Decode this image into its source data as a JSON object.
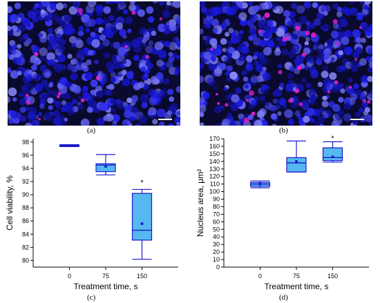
{
  "figure": {
    "panel_labels": {
      "a": "(a)",
      "b": "(b)",
      "c": "(c)",
      "d": "(d)"
    }
  },
  "micrographs": {
    "background_color": "#0a0a2e",
    "nucleus_color": "#2a2ae0",
    "marker_color": "#e020d0",
    "scale_bar_color": "#ffffff"
  },
  "chart_data": [
    {
      "type": "box",
      "panel": "c",
      "xlabel": "Treatment time, s",
      "ylabel": "Cell viability, %",
      "categories": [
        "0",
        "75",
        "150"
      ],
      "ylim": [
        79,
        98.5
      ],
      "yticks": [
        80,
        82,
        84,
        86,
        88,
        90,
        92,
        94,
        96,
        98
      ],
      "box_fill": "#55b8f0",
      "box_stroke": "#1a1acc",
      "series": [
        {
          "category": "0",
          "min": 97.3,
          "q1": 97.35,
          "median": 97.45,
          "q3": 97.55,
          "max": 97.6,
          "mean": 97.45
        },
        {
          "category": "75",
          "min": 93.0,
          "q1": 93.5,
          "median": 94.5,
          "q3": 94.7,
          "max": 96.1,
          "mean": 94.3
        },
        {
          "category": "150",
          "min": 80.2,
          "q1": 83.1,
          "median": 84.6,
          "q3": 90.2,
          "max": 90.8,
          "mean": 85.6
        }
      ],
      "annotations": [
        {
          "category": "150",
          "text": "*",
          "y": 91.9
        }
      ]
    },
    {
      "type": "box",
      "panel": "d",
      "xlabel": "Treatment time, s",
      "ylabel": "Nucleus area, μm²",
      "categories": [
        "0",
        "75",
        "150"
      ],
      "ylim": [
        0,
        170
      ],
      "yticks": [
        0,
        10,
        20,
        30,
        40,
        50,
        60,
        70,
        80,
        90,
        100,
        110,
        120,
        130,
        140,
        150,
        160,
        170
      ],
      "box_fill": "#55b8f0",
      "box_stroke": "#1a1acc",
      "series": [
        {
          "category": "0",
          "min": 105,
          "q1": 107,
          "median": 110,
          "q3": 112,
          "max": 114,
          "mean": 110
        },
        {
          "category": "75",
          "min": 126,
          "q1": 126,
          "median": 138,
          "q3": 145,
          "max": 167,
          "mean": 140
        },
        {
          "category": "150",
          "min": 139,
          "q1": 141,
          "median": 145,
          "q3": 158,
          "max": 166,
          "mean": 146
        }
      ],
      "annotations": [
        {
          "category": "150",
          "text": "*",
          "y": 171
        }
      ]
    }
  ]
}
